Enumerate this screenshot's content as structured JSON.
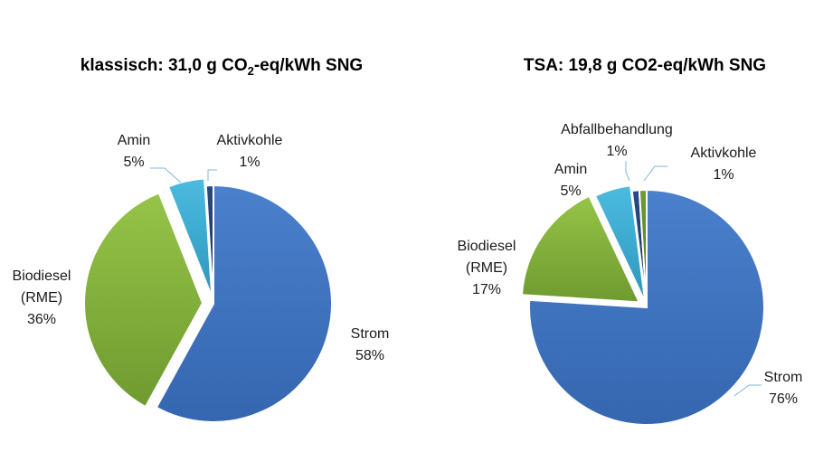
{
  "chart_data": [
    {
      "type": "pie",
      "title": "klassisch: 31,0 g CO2-eq/kWh SNG",
      "title_parts": {
        "pre": "klassisch: 31,0 g CO",
        "sub": "2",
        "post": "-eq/kWh SNG"
      },
      "slices": [
        {
          "label": "Strom",
          "value": 58,
          "value_label": "58%",
          "color": "#3f74c2"
        },
        {
          "label": "Biodiesel (RME)",
          "label_lines": [
            "Biodiesel",
            "(RME)"
          ],
          "value": 36,
          "value_label": "36%",
          "color": "#86b43c"
        },
        {
          "label": "Amin",
          "value": 5,
          "value_label": "5%",
          "color": "#3cabd0"
        },
        {
          "label": "Aktivkohle",
          "value": 1,
          "value_label": "1%",
          "color": "#1e3a6e"
        }
      ]
    },
    {
      "type": "pie",
      "title": "TSA: 19,8 g CO2-eq/kWh SNG",
      "title_parts": {
        "pre": "TSA: 19,8 g CO2-eq/kWh SNG",
        "sub": "",
        "post": ""
      },
      "slices": [
        {
          "label": "Strom",
          "value": 76,
          "value_label": "76%",
          "color": "#3f74c2"
        },
        {
          "label": "Biodiesel (RME)",
          "label_lines": [
            "Biodiesel",
            "(RME)"
          ],
          "value": 17,
          "value_label": "17%",
          "color": "#86b43c"
        },
        {
          "label": "Amin",
          "value": 5,
          "value_label": "5%",
          "color": "#3cabd0"
        },
        {
          "label": "Abfallbehandlung",
          "value": 1,
          "value_label": "1%",
          "color": "#1e3a6e"
        },
        {
          "label": "Aktivkohle",
          "value": 1,
          "value_label": "1%",
          "color": "#5e8a2c"
        }
      ]
    }
  ]
}
